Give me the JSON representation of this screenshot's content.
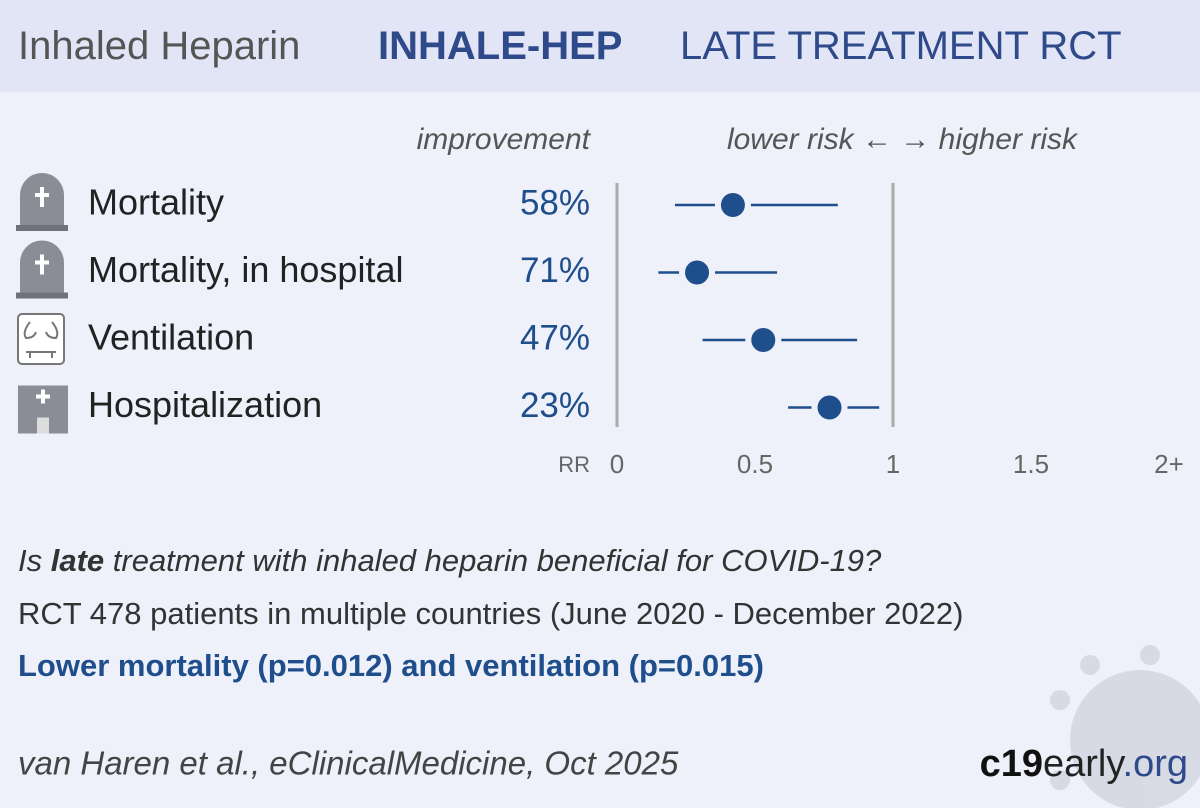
{
  "chart_data": {
    "type": "forest",
    "title_parts": [
      "Inhaled Heparin",
      "INHALE-HEP",
      "LATE TREATMENT RCT"
    ],
    "improvement_header": "improvement",
    "direction_label": "lower risk ← → higher risk",
    "categories": [
      "Mortality",
      "Mortality, in hospital",
      "Ventilation",
      "Hospitalization"
    ],
    "values": [
      0.42,
      0.29,
      0.53,
      0.77
    ],
    "lower": [
      0.21,
      0.15,
      0.31,
      0.62
    ],
    "upper": [
      0.8,
      0.58,
      0.87,
      0.95
    ],
    "improvement": {
      "values": [
        58,
        71,
        47,
        23
      ],
      "value_labels": [
        "58%",
        "71%",
        "47%",
        "23%"
      ]
    },
    "color": "#1f4e8c",
    "x_axis_label": "RR",
    "xlim": [
      0,
      2
    ],
    "xticks": [
      0,
      0.5,
      1,
      1.5,
      {
        "value": 2,
        "label": "2+"
      }
    ],
    "reference_line": 1,
    "question": [
      "Is ",
      "late",
      " treatment with inhaled heparin beneficial for COVID-19?"
    ],
    "details": "RCT 478 patients in multiple countries (June 2020 - December 2022)",
    "conclusion": "Lower mortality (p=0.012) and ventilation (p=0.015)",
    "citation": "van Haren et al., eClinicalMedicine, Oct 2025",
    "logo": [
      "c19",
      "early",
      ".org"
    ]
  }
}
